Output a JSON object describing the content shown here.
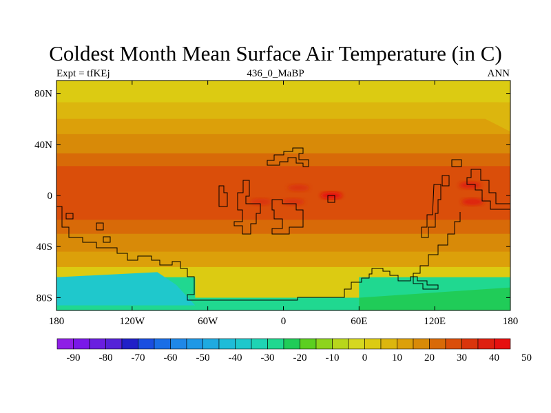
{
  "title": "Coldest Month Mean Surface Air Temperature (in C)",
  "subtitle_left": "Expt = tfKEj",
  "subtitle_center": "436_0_MaBP",
  "subtitle_right": "ANN",
  "chart_data": {
    "type": "heatmap",
    "x_ticks": [
      "180",
      "120W",
      "60W",
      "0",
      "60E",
      "120E",
      "180"
    ],
    "y_ticks": [
      "80N",
      "40N",
      "0",
      "40S",
      "80S"
    ],
    "xlim": [
      -180,
      180
    ],
    "ylim": [
      -90,
      90
    ],
    "colorbar": {
      "labels": [
        "-90",
        "-80",
        "-70",
        "-60",
        "-50",
        "-40",
        "-30",
        "-20",
        "-10",
        "0",
        "10",
        "20",
        "30",
        "40",
        "50"
      ],
      "colors": [
        "#8f1fe6",
        "#7a18e8",
        "#6a1fe0",
        "#5523d8",
        "#2020c8",
        "#1a4ee0",
        "#1a6ee6",
        "#1f88e8",
        "#1f98e6",
        "#1faae0",
        "#1fbcd8",
        "#1fc8cc",
        "#1fd4b4",
        "#20d890",
        "#20cc58",
        "#5ccf20",
        "#8ed41c",
        "#b8d61c",
        "#d6d820",
        "#dccb12",
        "#dcb60e",
        "#dca00a",
        "#d88a08",
        "#d86a08",
        "#da4e0a",
        "#da350c",
        "#de2010",
        "#e61010"
      ]
    },
    "bands": [
      {
        "lat_from": 90,
        "lat_to": 73,
        "value": 0
      },
      {
        "lat_from": 73,
        "lat_to": 60,
        "value": 5
      },
      {
        "lat_from": 60,
        "lat_to": 48,
        "value": 10
      },
      {
        "lat_from": 48,
        "lat_to": 33,
        "value": 15
      },
      {
        "lat_from": 33,
        "lat_to": 23,
        "value": 20
      },
      {
        "lat_from": 23,
        "lat_to": -19,
        "value": 28
      },
      {
        "lat_from": -19,
        "lat_to": -30,
        "value": 22
      },
      {
        "lat_from": -30,
        "lat_to": -44,
        "value": 15
      },
      {
        "lat_from": -44,
        "lat_to": -56,
        "value": 10
      },
      {
        "lat_from": -56,
        "lat_to": -64,
        "value": 2
      },
      {
        "lat_from": -64,
        "lat_to": -90,
        "value": -30
      }
    ],
    "hot_spots": [
      {
        "lon": 12,
        "lat": 6,
        "value": 34
      },
      {
        "lon": -18,
        "lat": -5,
        "value": 34
      },
      {
        "lon": 8,
        "lat": -5,
        "value": 34
      },
      {
        "lon": 148,
        "lat": 8,
        "value": 36
      },
      {
        "lon": 150,
        "lat": -5,
        "value": 36
      },
      {
        "lon": 38,
        "lat": 0,
        "value": 40
      }
    ]
  }
}
